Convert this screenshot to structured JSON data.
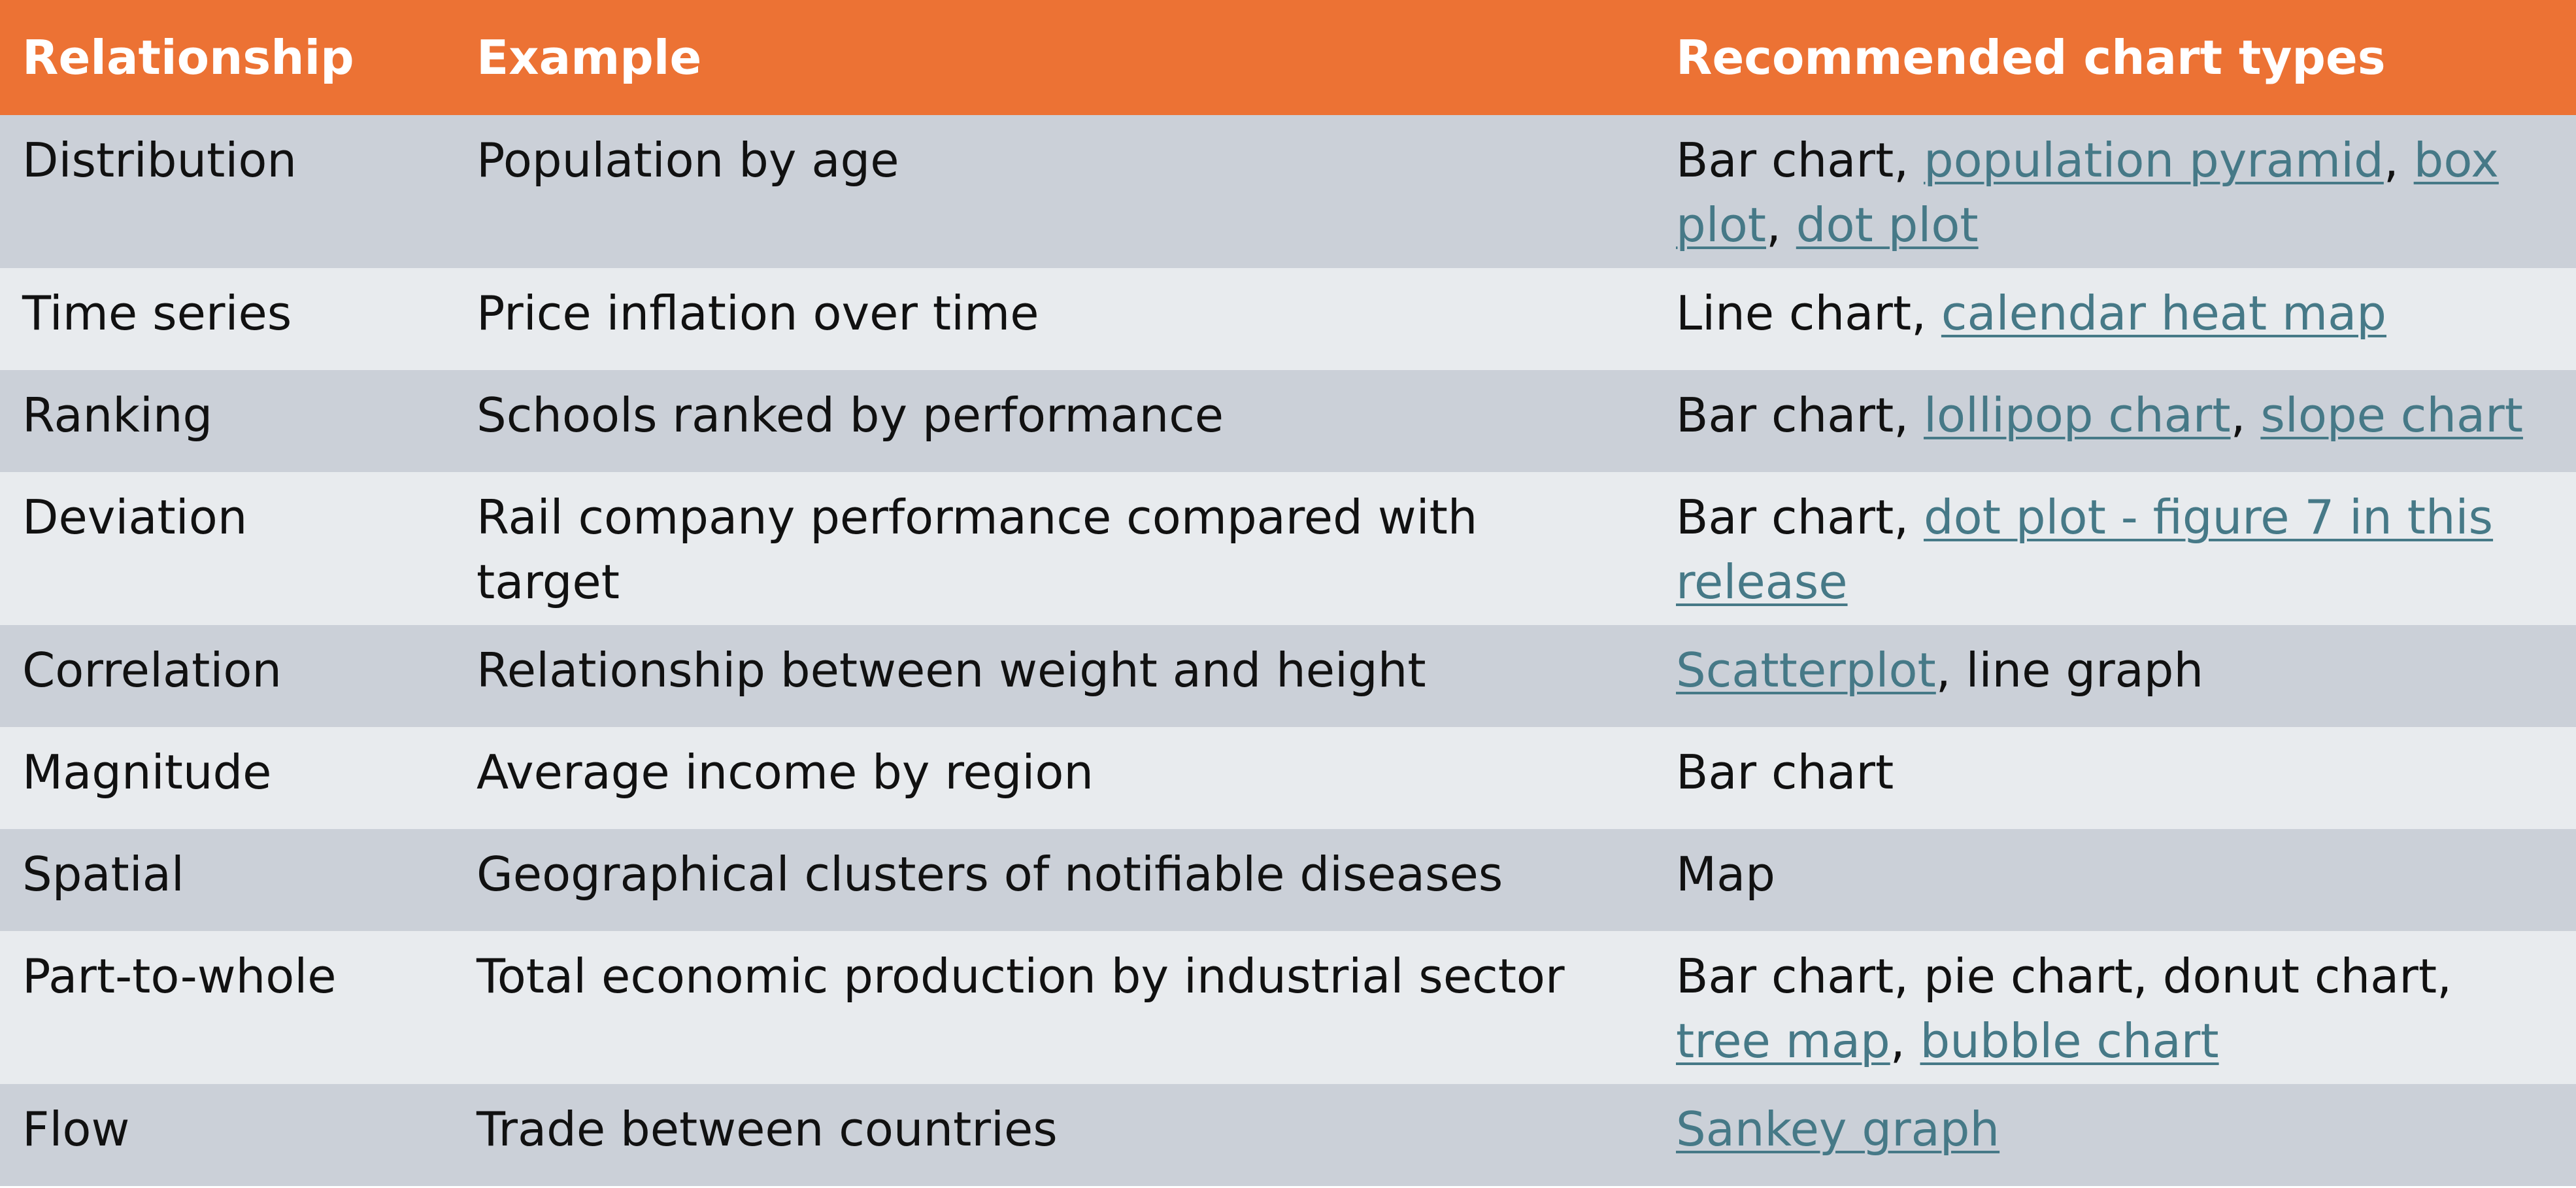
{
  "header": {
    "relationship": "Relationship",
    "example": "Example",
    "charts": "Recommended chart types"
  },
  "rows": [
    {
      "relationship": "Distribution",
      "example": "Population by age",
      "charts": [
        {
          "text": "Bar chart",
          "link": false
        },
        {
          "text": ", ",
          "link": false
        },
        {
          "text": "population pyramid",
          "link": true
        },
        {
          "text": ", ",
          "link": false
        },
        {
          "text": "box plot",
          "link": true
        },
        {
          "text": ", ",
          "link": false
        },
        {
          "text": "dot plot",
          "link": true
        }
      ]
    },
    {
      "relationship": "Time series",
      "example": "Price inflation over time",
      "charts": [
        {
          "text": "Line chart",
          "link": false
        },
        {
          "text": ", ",
          "link": false
        },
        {
          "text": "calendar heat map",
          "link": true
        }
      ]
    },
    {
      "relationship": "Ranking",
      "example": "Schools ranked by performance",
      "charts": [
        {
          "text": "Bar chart",
          "link": false
        },
        {
          "text": ", ",
          "link": false
        },
        {
          "text": "lollipop chart",
          "link": true
        },
        {
          "text": ", ",
          "link": false
        },
        {
          "text": "slope chart",
          "link": true
        }
      ]
    },
    {
      "relationship": "Deviation",
      "example": "Rail company performance compared with target",
      "charts": [
        {
          "text": "Bar chart",
          "link": false
        },
        {
          "text": ", ",
          "link": false
        },
        {
          "text": "dot plot - figure 7 in this release",
          "link": true
        }
      ]
    },
    {
      "relationship": "Correlation",
      "example": "Relationship between weight and height",
      "charts": [
        {
          "text": "Scatterplot",
          "link": true
        },
        {
          "text": ", line graph",
          "link": false
        }
      ]
    },
    {
      "relationship": "Magnitude",
      "example": "Average income by region",
      "charts": [
        {
          "text": "Bar chart",
          "link": false
        }
      ]
    },
    {
      "relationship": "Spatial",
      "example": "Geographical clusters of notifiable diseases",
      "charts": [
        {
          "text": "Map",
          "link": false
        }
      ]
    },
    {
      "relationship": "Part-to-whole",
      "example": "Total economic production by industrial sector",
      "charts": [
        {
          "text": "Bar chart, pie chart, donut chart",
          "link": false
        },
        {
          "text": ", ",
          "link": false
        },
        {
          "text": "tree map",
          "link": true
        },
        {
          "text": ", ",
          "link": false
        },
        {
          "text": "bubble chart",
          "link": true
        }
      ]
    },
    {
      "relationship": "Flow",
      "example": "Trade between countries",
      "charts": [
        {
          "text": "Sankey graph",
          "link": true
        }
      ]
    }
  ],
  "colors": {
    "header_bg": "#ec7234",
    "row_dark": "#cbd0d8",
    "row_light": "#e8ebee",
    "link": "#467987"
  }
}
